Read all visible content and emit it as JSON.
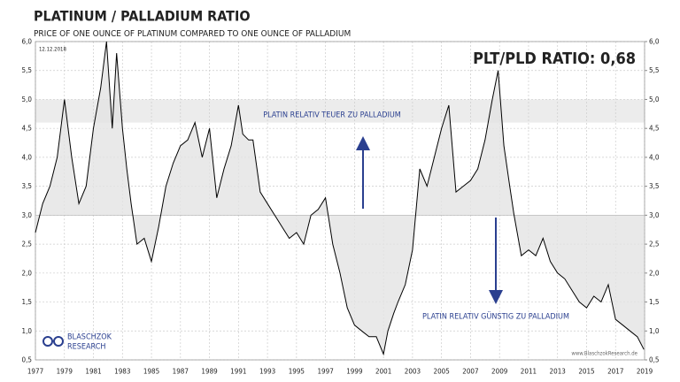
{
  "chart_data": {
    "type": "line",
    "title": "PLATINUM / PALLADIUM RATIO",
    "subtitle": "PRICE OF ONE OUNCE OF PLATINUM COMPARED TO ONE OUNCE OF PALLADIUM",
    "date": "12.12.2018",
    "current_label": "PLT/PLD RATIO: 0,68",
    "annotations": [
      "PLATIN RELATIV TEUER ZU PALLADIUM",
      "PLATIN RELATIV GÜNSTIG ZU PALLADIUM"
    ],
    "logo": [
      "BLASCHZOK",
      "RESEARCH"
    ],
    "watermark": "www.BlaschzokResearch.de",
    "band": [
      4.6,
      5.0
    ],
    "baseline": 3.0,
    "grid": true,
    "series": [
      {
        "color": "#000000",
        "x": [
          1977.0,
          1977.5,
          1978.0,
          1978.5,
          1979.0,
          1979.5,
          1980.0,
          1980.5,
          1981.0,
          1981.5,
          1981.9,
          1982.3,
          1982.6,
          1983.0,
          1983.3,
          1983.6,
          1984.0,
          1984.5,
          1985.0,
          1985.5,
          1986.0,
          1986.5,
          1987.0,
          1987.5,
          1988.0,
          1988.5,
          1989.0,
          1989.5,
          1990.0,
          1990.5,
          1991.0,
          1991.3,
          1991.7,
          1992.0,
          1992.5,
          1993.0,
          1993.5,
          1994.0,
          1994.5,
          1995.0,
          1995.5,
          1996.0,
          1996.5,
          1997.0,
          1997.5,
          1998.0,
          1998.5,
          1999.0,
          1999.5,
          2000.0,
          2000.5,
          2001.0,
          2001.3,
          2001.7,
          2002.0,
          2002.5,
          2003.0,
          2003.5,
          2004.0,
          2004.5,
          2005.0,
          2005.5,
          2006.0,
          2006.5,
          2007.0,
          2007.5,
          2008.0,
          2008.5,
          2008.9,
          2009.3,
          2009.7,
          2010.0,
          2010.5,
          2011.0,
          2011.5,
          2012.0,
          2012.5,
          2013.0,
          2013.5,
          2014.0,
          2014.5,
          2015.0,
          2015.5,
          2016.0,
          2016.5,
          2017.0,
          2017.5,
          2018.0,
          2018.5,
          2018.95
        ],
        "values": [
          2.7,
          3.2,
          3.5,
          4.0,
          5.0,
          4.0,
          3.2,
          3.5,
          4.5,
          5.2,
          6.0,
          4.5,
          5.8,
          4.5,
          3.8,
          3.2,
          2.5,
          2.6,
          2.2,
          2.8,
          3.5,
          3.9,
          4.2,
          4.3,
          4.6,
          4.0,
          4.5,
          3.3,
          3.8,
          4.2,
          4.9,
          4.4,
          4.3,
          4.3,
          3.4,
          3.2,
          3.0,
          2.8,
          2.6,
          2.7,
          2.5,
          3.0,
          3.1,
          3.3,
          2.5,
          2.0,
          1.4,
          1.1,
          1.0,
          0.9,
          0.9,
          0.6,
          1.0,
          1.3,
          1.5,
          1.8,
          2.4,
          3.8,
          3.5,
          4.0,
          4.5,
          4.9,
          3.4,
          3.5,
          3.6,
          3.8,
          4.3,
          5.0,
          5.5,
          4.2,
          3.5,
          3.0,
          2.3,
          2.4,
          2.3,
          2.6,
          2.2,
          2.0,
          1.9,
          1.7,
          1.5,
          1.4,
          1.6,
          1.5,
          1.8,
          1.2,
          1.1,
          1.0,
          0.9,
          0.68
        ]
      }
    ],
    "xlim": [
      1977,
      2019
    ],
    "xticks": [
      1977,
      1979,
      1981,
      1983,
      1985,
      1987,
      1989,
      1991,
      1993,
      1995,
      1997,
      1999,
      2001,
      2003,
      2005,
      2007,
      2009,
      2011,
      2013,
      2015,
      2017,
      2019
    ],
    "ylim": [
      0.5,
      6.0
    ],
    "yticks": [
      {
        "value": 0.5,
        "label": "0,5"
      },
      {
        "value": 1.0,
        "label": "1,0"
      },
      {
        "value": 1.5,
        "label": "1,5"
      },
      {
        "value": 2.0,
        "label": "2,0"
      },
      {
        "value": 2.5,
        "label": "2,5"
      },
      {
        "value": 3.0,
        "label": "3,0"
      },
      {
        "value": 3.5,
        "label": "3,5"
      },
      {
        "value": 4.0,
        "label": "4,0"
      },
      {
        "value": 4.5,
        "label": "4,5"
      },
      {
        "value": 5.0,
        "label": "5,0"
      },
      {
        "value": 5.5,
        "label": "5,5"
      },
      {
        "value": 6.0,
        "label": "6,0"
      }
    ],
    "y2lim": [
      0.5,
      6.0
    ],
    "y2ticks": [
      {
        "value": 0.5,
        "label": "0,5"
      },
      {
        "value": 1.0,
        "label": "1,0"
      },
      {
        "value": 1.5,
        "label": "1,5"
      },
      {
        "value": 2.0,
        "label": "2,0"
      },
      {
        "value": 2.5,
        "label": "2,5"
      },
      {
        "value": 3.0,
        "label": "3,0"
      },
      {
        "value": 3.5,
        "label": "3,5"
      },
      {
        "value": 4.0,
        "label": "4,0"
      },
      {
        "value": 4.5,
        "label": "4,5"
      },
      {
        "value": 5.0,
        "label": "5,0"
      },
      {
        "value": 5.5,
        "label": "5,5"
      },
      {
        "value": 6.0,
        "label": "6,0"
      }
    ]
  }
}
